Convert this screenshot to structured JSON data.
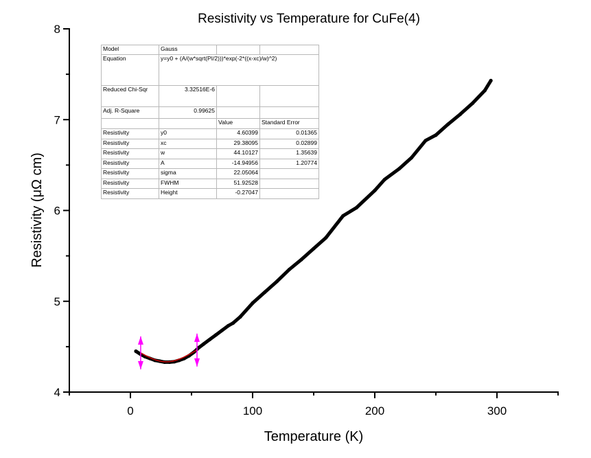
{
  "chart_data": {
    "type": "scatter",
    "title": "Resistivity vs Temperature for CuFe(4)",
    "xlabel": "Temperature (K)",
    "ylabel": "Resistivity (μΩ cm)",
    "xlim": [
      -50,
      350
    ],
    "ylim": [
      4,
      8
    ],
    "xticks": [
      0,
      100,
      200,
      300
    ],
    "xminor": [
      -50,
      50,
      150,
      250,
      350
    ],
    "yticks": [
      4,
      5,
      6,
      7,
      8
    ],
    "yminor": [
      4.5,
      5.5,
      6.5,
      7.5
    ],
    "grid": false,
    "series": [
      {
        "name": "Resistivity",
        "style": "markers",
        "color": "#000000",
        "x": [
          4.5,
          8,
          12,
          16,
          20,
          24,
          28,
          32,
          36,
          40,
          44,
          48,
          52,
          56,
          60,
          65,
          70,
          75,
          80,
          84,
          90,
          100,
          110,
          120,
          130,
          140,
          150,
          160,
          174,
          185,
          200,
          208,
          220,
          230,
          241.6,
          250,
          260,
          270,
          280,
          290,
          295
        ],
        "y": [
          4.45,
          4.42,
          4.39,
          4.37,
          4.35,
          4.34,
          4.33,
          4.33,
          4.335,
          4.35,
          4.37,
          4.4,
          4.44,
          4.49,
          4.53,
          4.58,
          4.63,
          4.68,
          4.73,
          4.76,
          4.83,
          4.98,
          5.1,
          5.22,
          5.35,
          5.46,
          5.58,
          5.7,
          5.94,
          6.03,
          6.22,
          6.34,
          6.46,
          6.58,
          6.77,
          6.83,
          6.95,
          7.06,
          7.18,
          7.32,
          7.43
        ]
      },
      {
        "name": "Gauss fit",
        "style": "line",
        "color": "#cc0000",
        "x_range": [
          8.4,
          54.5
        ]
      }
    ],
    "range_markers": {
      "color": "#ff00ff",
      "x": [
        8.4,
        54.5
      ]
    },
    "fit_table": {
      "model_label": "Model",
      "model_value": "Gauss",
      "equation_label": "Equation",
      "equation_value": "y=y0 + (A/(w*sqrt(PI/2)))*exp(-2*((x-xc)/w)^2)",
      "chi_label": "Reduced Chi-Sqr",
      "chi_value": "3.32516E-6",
      "adj_label": "Adj. R-Square",
      "adj_value": "0.99625",
      "header_value": "Value",
      "header_error": "Standard Error",
      "rows": [
        {
          "dep": "Resistivity",
          "param": "y0",
          "value": "4.60399",
          "error": "0.01365"
        },
        {
          "dep": "Resistivity",
          "param": "xc",
          "value": "29.38095",
          "error": "0.02899"
        },
        {
          "dep": "Resistivity",
          "param": "w",
          "value": "44.10127",
          "error": "1.35639"
        },
        {
          "dep": "Resistivity",
          "param": "A",
          "value": "-14.94956",
          "error": "1.20774"
        },
        {
          "dep": "Resistivity",
          "param": "sigma",
          "value": "22.05064",
          "error": ""
        },
        {
          "dep": "Resistivity",
          "param": "FWHM",
          "value": "51.92528",
          "error": ""
        },
        {
          "dep": "Resistivity",
          "param": "Height",
          "value": "-0.27047",
          "error": ""
        }
      ],
      "params": {
        "y0": 4.60399,
        "xc": 29.38095,
        "w": 44.10127,
        "A": -14.94956
      }
    }
  }
}
